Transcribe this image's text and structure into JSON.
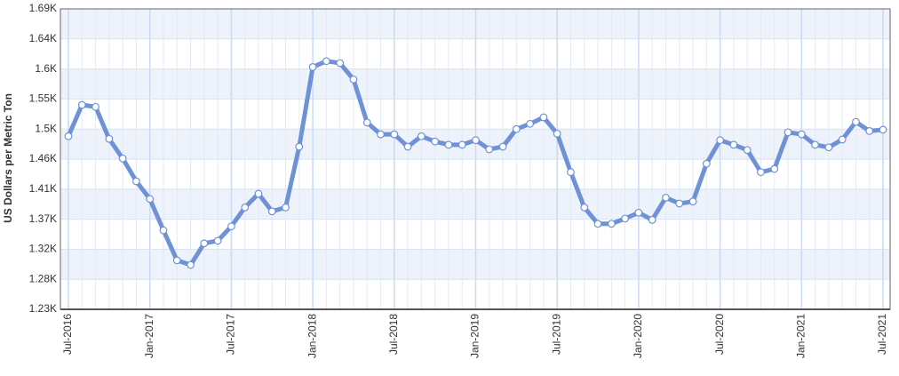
{
  "chart_data": {
    "type": "line",
    "y_label": "US Dollars per Metric Ton",
    "categories": [
      "Jul-2016",
      null,
      null,
      null,
      null,
      null,
      "Jan-2017",
      null,
      null,
      null,
      null,
      null,
      "Jul-2017",
      null,
      null,
      null,
      null,
      null,
      "Jan-2018",
      null,
      null,
      null,
      null,
      null,
      "Jul-2018",
      null,
      null,
      null,
      null,
      null,
      "Jan-2019",
      null,
      null,
      null,
      null,
      null,
      "Jul-2019",
      null,
      null,
      null,
      null,
      null,
      "Jan-2020",
      null,
      null,
      null,
      null,
      null,
      "Jul-2020",
      null,
      null,
      null,
      null,
      null,
      "Jan-2021",
      null,
      null,
      null,
      null,
      null,
      "Jul-2021"
    ],
    "series": [
      {
        "color": "#6f92d6",
        "values": [
          1495,
          1543,
          1540,
          1491,
          1461,
          1426,
          1399,
          1351,
          1305,
          1298,
          1331,
          1335,
          1357,
          1386,
          1407,
          1380,
          1386,
          1479,
          1601,
          1610,
          1607,
          1582,
          1516,
          1498,
          1498,
          1479,
          1495,
          1487,
          1482,
          1482,
          1489,
          1475,
          1479,
          1506,
          1514,
          1524,
          1499,
          1440,
          1386,
          1361,
          1361,
          1369,
          1378,
          1367,
          1401,
          1392,
          1395,
          1453,
          1489,
          1482,
          1474,
          1440,
          1445,
          1501,
          1498,
          1482,
          1478,
          1490,
          1517,
          1503,
          1505
        ]
      }
    ],
    "ylim": [
      1230,
      1690
    ],
    "yticks": [
      {
        "value": 1230,
        "label": "1.23K"
      },
      {
        "value": 1276,
        "label": "1.28K"
      },
      {
        "value": 1322,
        "label": "1.32K"
      },
      {
        "value": 1368,
        "label": "1.37K"
      },
      {
        "value": 1414,
        "label": "1.41K"
      },
      {
        "value": 1460,
        "label": "1.46K"
      },
      {
        "value": 1506,
        "label": "1.5K"
      },
      {
        "value": 1552,
        "label": "1.55K"
      },
      {
        "value": 1598,
        "label": "1.6K"
      },
      {
        "value": 1644,
        "label": "1.64K"
      },
      {
        "value": 1690,
        "label": "1.69K"
      }
    ],
    "grid": true
  }
}
